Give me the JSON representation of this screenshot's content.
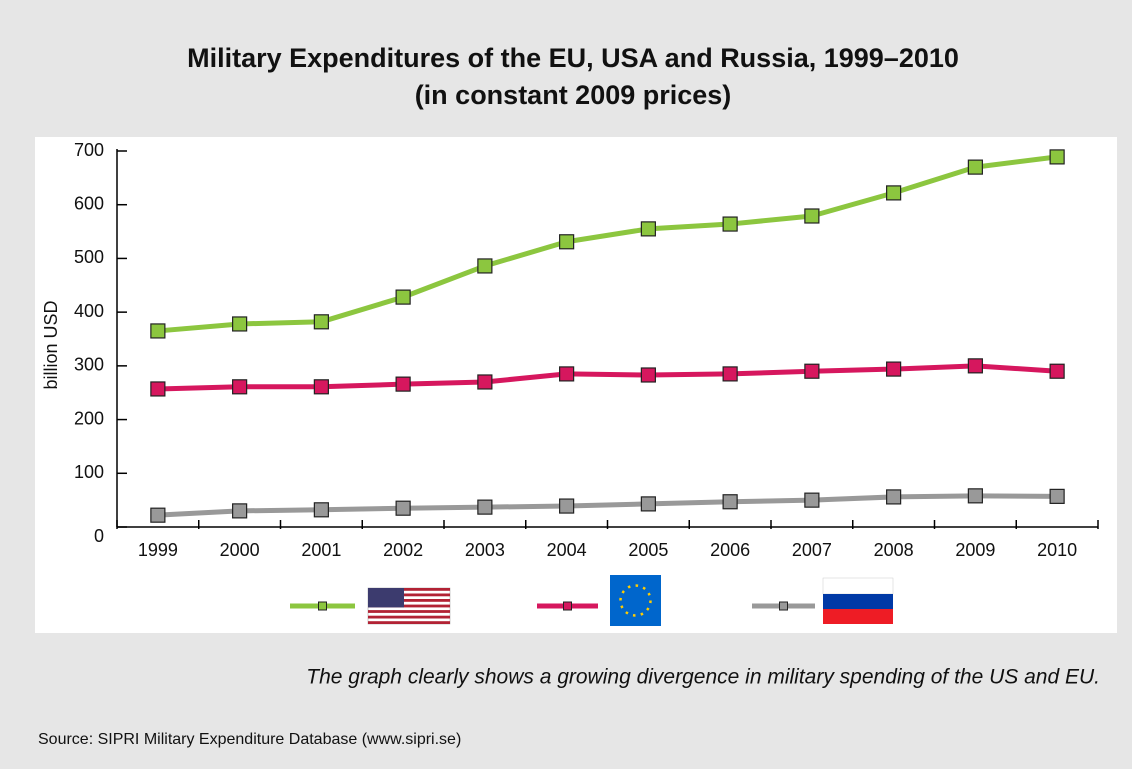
{
  "chart_data": {
    "type": "line",
    "title": "Military Expenditures of the EU, USA and Russia, 1999–2010",
    "subtitle": "(in constant 2009 prices)",
    "y_label": "billion USD",
    "categories": [
      "1999",
      "2000",
      "2001",
      "2002",
      "2003",
      "2004",
      "2005",
      "2006",
      "2007",
      "2008",
      "2009",
      "2010"
    ],
    "series": [
      {
        "color": "#8cc63f",
        "values": [
          365,
          378,
          382,
          428,
          486,
          531,
          555,
          564,
          579,
          622,
          670,
          689
        ]
      },
      {
        "color": "#d6175e",
        "values": [
          257,
          261,
          261,
          266,
          270,
          285,
          283,
          285,
          290,
          294,
          300,
          290
        ]
      },
      {
        "color": "#999999",
        "values": [
          22,
          30,
          32,
          35,
          37,
          39,
          43,
          47,
          50,
          56,
          58,
          57
        ]
      }
    ],
    "ylim": [
      0,
      700
    ],
    "yticks": [
      0,
      100,
      200,
      300,
      400,
      500,
      600,
      700
    ],
    "annotation": "The graph clearly shows a growing divergence in military spending of the US and EU.",
    "source": "Source: SIPRI Military Expenditure Database (www.sipri.se)"
  }
}
